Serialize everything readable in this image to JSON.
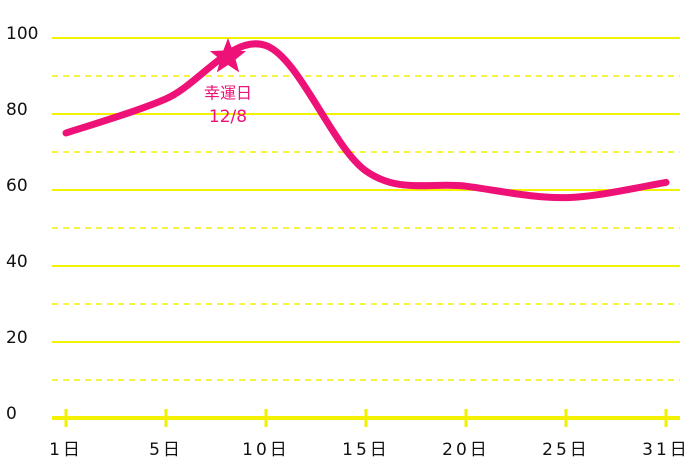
{
  "chart_data": {
    "type": "line",
    "categories": [
      "1日",
      "5日",
      "10日",
      "15日",
      "20日",
      "25日",
      "31日"
    ],
    "values": [
      75,
      84,
      98,
      65,
      61,
      58,
      62
    ],
    "color": "#ee1177",
    "grid_color": "#f2f200",
    "ylim": [
      0,
      100
    ],
    "yticks": [
      0,
      20,
      40,
      60,
      80,
      100
    ],
    "minor_yticks": [
      10,
      30,
      50,
      70,
      90
    ],
    "grid": true,
    "annotation": {
      "label": "幸運日",
      "date": "12/8",
      "value": 95
    }
  }
}
